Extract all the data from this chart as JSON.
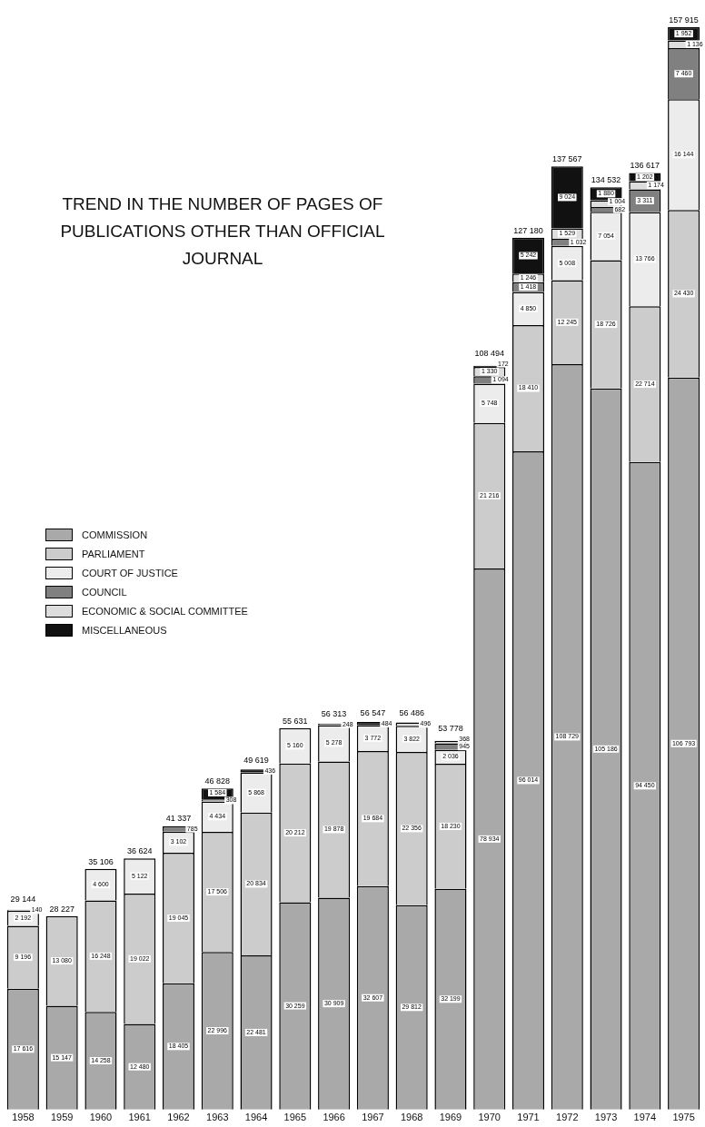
{
  "chart_data": {
    "type": "bar",
    "title": "TREND IN THE NUMBER OF PAGES OF PUBLICATIONS OTHER THAN OFFICIAL JOURNAL",
    "categories": [
      "1958",
      "1959",
      "1960",
      "1961",
      "1962",
      "1963",
      "1964",
      "1965",
      "1966",
      "1967",
      "1968",
      "1969",
      "1970",
      "1971",
      "1972",
      "1973",
      "1974",
      "1975"
    ],
    "stacked": true,
    "legend": "left",
    "data_labels": true,
    "tick_labels": "x",
    "grid": false,
    "series": [
      {
        "name": "COMMISSION",
        "color": "#a9a9a9",
        "values": [
          17616,
          15147,
          14258,
          12480,
          18405,
          22996,
          22481,
          30259,
          30909,
          32607,
          29812,
          32199,
          78934,
          96014,
          108729,
          105186,
          94450,
          106793
        ]
      },
      {
        "name": "PARLIAMENT",
        "color": "#cccccc",
        "values": [
          9196,
          13080,
          16248,
          19022,
          19045,
          17506,
          20834,
          20212,
          19878,
          19684,
          22356,
          18230,
          21216,
          18410,
          12245,
          18726,
          22714,
          24430
        ]
      },
      {
        "name": "COURT OF JUSTICE",
        "color": "#ececec",
        "values": [
          2192,
          null,
          4600,
          5122,
          3102,
          4434,
          5868,
          5160,
          5278,
          3772,
          3822,
          2036,
          5748,
          4850,
          5008,
          7054,
          13766,
          16144
        ]
      },
      {
        "name": "COUNCIL",
        "color": "#808080",
        "values": [
          null,
          null,
          null,
          null,
          785,
          null,
          null,
          null,
          null,
          null,
          null,
          945,
          1094,
          1418,
          1032,
          682,
          3311,
          7460
        ]
      },
      {
        "name": "ECONOMIC & SOCIAL COMMITTEE",
        "color": "#dddddd",
        "values": [
          140,
          null,
          null,
          null,
          null,
          308,
          null,
          null,
          248,
          null,
          496,
          368,
          1330,
          1246,
          1529,
          1004,
          1174,
          1136
        ]
      },
      {
        "name": "MISCELLANEOUS",
        "color": "#111111",
        "values": [
          null,
          null,
          null,
          null,
          null,
          1584,
          436,
          null,
          null,
          484,
          null,
          null,
          172,
          5242,
          9024,
          1880,
          1202,
          1952
        ]
      }
    ],
    "totals": [
      "29 144",
      "28 227",
      "35 106",
      "36 624",
      "41 337",
      "46 828",
      "49 619",
      "55 631",
      "56 313",
      "56 547",
      "56 486",
      "53 778",
      "108 494",
      "127 180",
      "137 567",
      "134 532",
      "136 617",
      "157 915"
    ]
  }
}
